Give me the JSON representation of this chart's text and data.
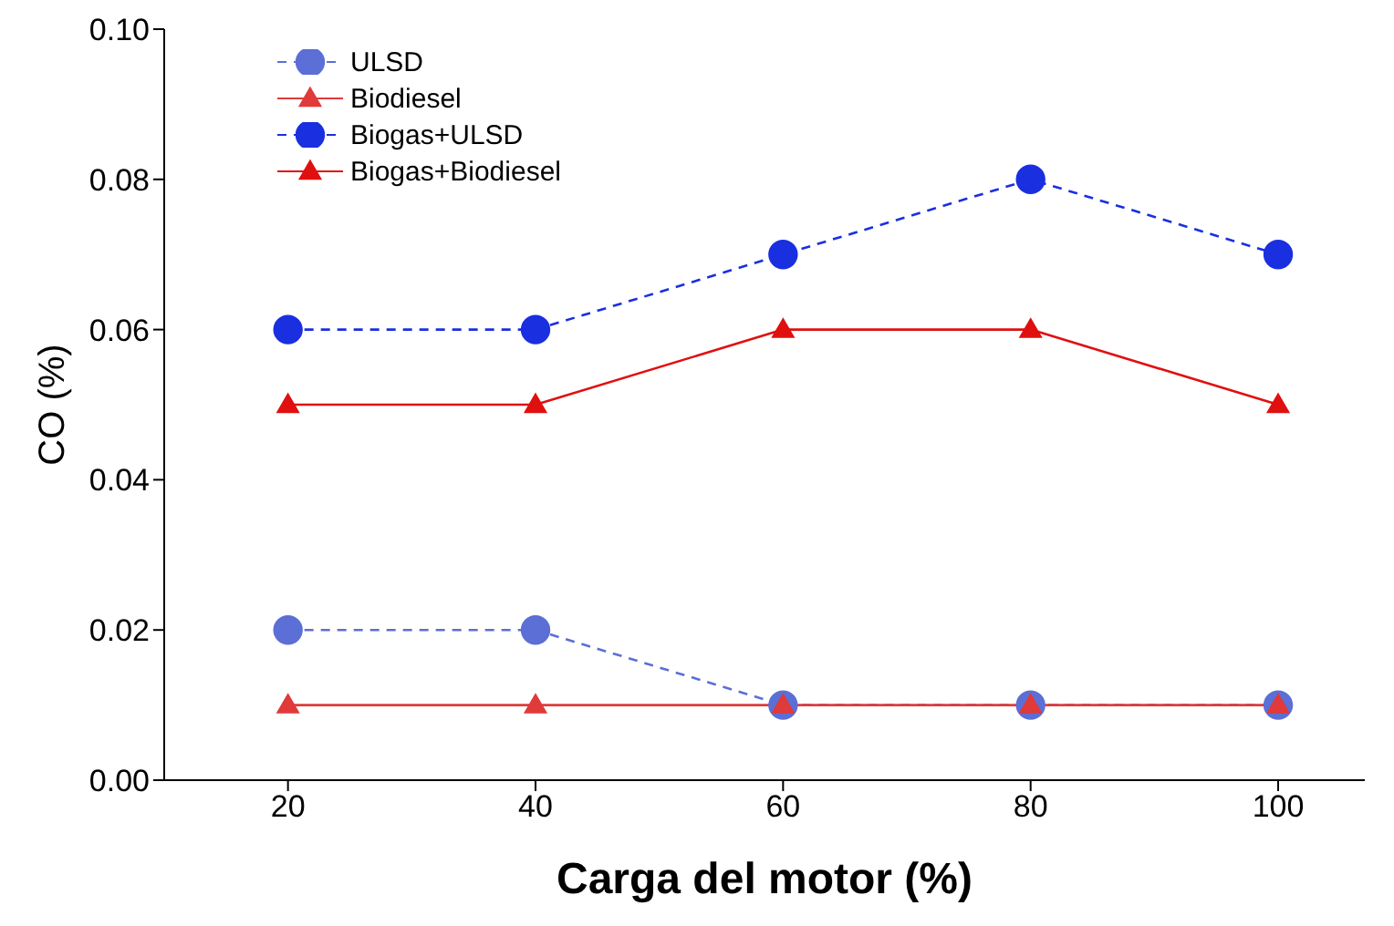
{
  "chart_data": {
    "type": "line",
    "xlabel": "Carga del motor (%)",
    "ylabel": "CO (%)",
    "x": [
      20,
      40,
      60,
      80,
      100
    ],
    "xlim": [
      10,
      107
    ],
    "xticks": [
      20,
      40,
      60,
      80,
      100
    ],
    "ylim": [
      0,
      0.1
    ],
    "yticks": [
      {
        "value": 0,
        "label": "0.00"
      },
      {
        "value": 0.02,
        "label": "0.02"
      },
      {
        "value": 0.04,
        "label": "0.04"
      },
      {
        "value": 0.06,
        "label": "0.06"
      },
      {
        "value": 0.08,
        "label": "0.08"
      },
      {
        "value": 0.1,
        "label": "0.10"
      }
    ],
    "legend": "top left",
    "grid": false,
    "series": [
      {
        "name": "ULSD",
        "color": "#5b6fd6",
        "values": [
          0.02,
          0.02,
          0.01,
          0.01,
          0.01
        ],
        "marker": "circle",
        "line_style": "dashed"
      },
      {
        "name": "Biodiesel",
        "color": "#e03a3a",
        "values": [
          0.01,
          0.01,
          0.01,
          0.01,
          0.01
        ],
        "marker": "triangle",
        "line_style": "solid"
      },
      {
        "name": "Biogas+ULSD",
        "color": "#1a2fe0",
        "values": [
          0.06,
          0.06,
          0.07,
          0.08,
          0.07
        ],
        "marker": "circle",
        "line_style": "dashed"
      },
      {
        "name": "Biogas+Biodiesel",
        "color": "#e01010",
        "values": [
          0.05,
          0.05,
          0.06,
          0.06,
          0.05
        ],
        "marker": "triangle",
        "line_style": "solid"
      }
    ]
  }
}
